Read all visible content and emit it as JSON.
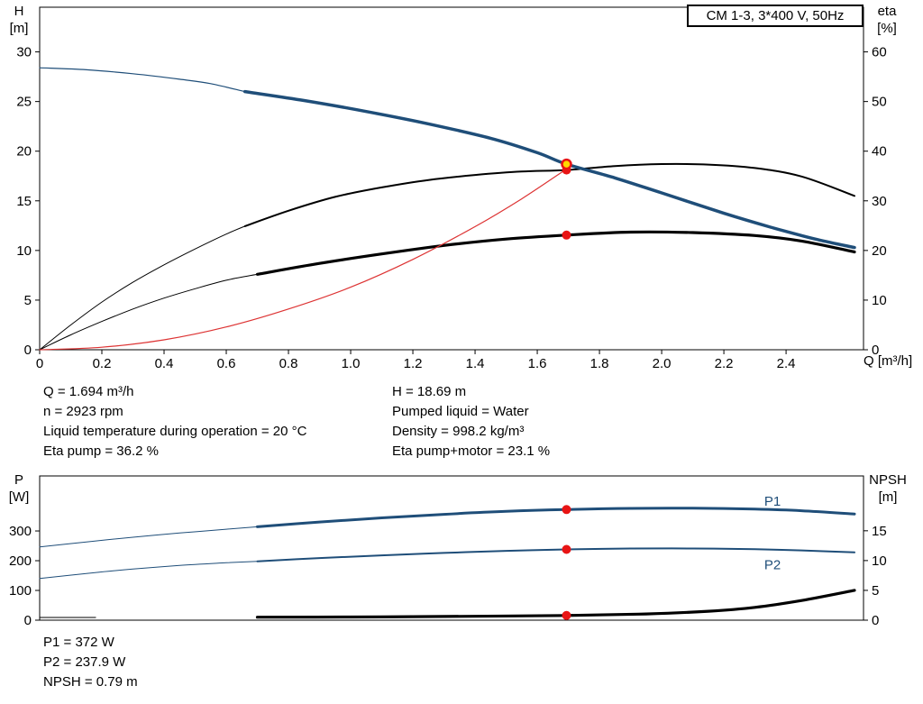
{
  "info": {
    "top_left": [
      "Q = 1.694 m³/h",
      "n = 2923 rpm",
      "Liquid temperature during operation = 20 °C",
      "Eta pump = 36.2 %"
    ],
    "top_right": [
      "H = 18.69 m",
      "Pumped liquid = Water",
      "Density = 998.2 kg/m³",
      "Eta pump+motor = 23.1 %"
    ],
    "bottom": [
      "P1 = 372 W",
      "P2 = 237.9 W",
      "NPSH = 0.79 m"
    ]
  },
  "colors": {
    "curve_blue": "#1f4e79",
    "curve_black": "#000000",
    "curve_red": "#dd3333",
    "marker_red": "#e81414",
    "marker_yellow": "#ffd800"
  },
  "chart_data": [
    {
      "name": "qh-eta-chart",
      "type": "line",
      "title": "CM 1-3, 3*400 V, 50Hz",
      "x_axis": {
        "label": "Q [m³/h]",
        "min": 0,
        "max": 2.649,
        "ticks": [
          [
            0,
            "0"
          ],
          [
            0.2,
            "0.2"
          ],
          [
            0.4,
            "0.4"
          ],
          [
            0.6,
            "0.6"
          ],
          [
            0.8,
            "0.8"
          ],
          [
            1,
            "1.0"
          ],
          [
            1.2,
            "1.2"
          ],
          [
            1.4,
            "1.4"
          ],
          [
            1.6,
            "1.6"
          ],
          [
            1.8,
            "1.8"
          ],
          [
            2,
            "2.0"
          ],
          [
            2.2,
            "2.2"
          ],
          [
            2.4,
            "2.4"
          ]
        ]
      },
      "left_axis": {
        "label": "H",
        "unit": "[m]",
        "min": 0,
        "max": 34.5,
        "ticks": [
          [
            0,
            "0"
          ],
          [
            5,
            "5"
          ],
          [
            10,
            "10"
          ],
          [
            15,
            "15"
          ],
          [
            20,
            "20"
          ],
          [
            25,
            "25"
          ],
          [
            30,
            "30"
          ]
        ]
      },
      "right_axis": {
        "label": "eta",
        "unit": "[%]",
        "min": 0,
        "max": 69,
        "ticks": [
          [
            0,
            "0"
          ],
          [
            10,
            "10"
          ],
          [
            20,
            "20"
          ],
          [
            30,
            "30"
          ],
          [
            40,
            "40"
          ],
          [
            50,
            "50"
          ],
          [
            60,
            "60"
          ]
        ]
      },
      "operating_point": {
        "Q": 1.694,
        "H": 18.69,
        "eta_pump": 36.2,
        "eta_pump_motor": 23.1
      },
      "series": [
        {
          "name": "eta-pump-curve-thin",
          "axis": "right",
          "color": "#000000",
          "width": 1,
          "points": [
            [
              0,
              0
            ],
            [
              0.1,
              5
            ],
            [
              0.2,
              9.6
            ],
            [
              0.3,
              13.6
            ],
            [
              0.4,
              17.1
            ],
            [
              0.5,
              20.3
            ],
            [
              0.6,
              23.3
            ],
            [
              0.66,
              24.9
            ]
          ]
        },
        {
          "name": "eta-pump-curve",
          "axis": "right",
          "color": "#000000",
          "width": 2,
          "points": [
            [
              0.66,
              24.9
            ],
            [
              0.8,
              28.0
            ],
            [
              0.95,
              30.8
            ],
            [
              1.1,
              32.7
            ],
            [
              1.25,
              34.2
            ],
            [
              1.4,
              35.2
            ],
            [
              1.55,
              35.9
            ],
            [
              1.694,
              36.2
            ],
            [
              1.85,
              37.0
            ],
            [
              2.0,
              37.4
            ],
            [
              2.15,
              37.3
            ],
            [
              2.3,
              36.6
            ],
            [
              2.45,
              34.9
            ],
            [
              2.62,
              31.0
            ]
          ]
        },
        {
          "name": "eta-total-curve-thin",
          "axis": "right",
          "color": "#000000",
          "width": 1,
          "points": [
            [
              0,
              0
            ],
            [
              0.1,
              3.0
            ],
            [
              0.2,
              5.7
            ],
            [
              0.3,
              8.2
            ],
            [
              0.4,
              10.4
            ],
            [
              0.5,
              12.3
            ],
            [
              0.6,
              14.0
            ],
            [
              0.7,
              15.2
            ]
          ]
        },
        {
          "name": "eta-total-curve",
          "axis": "right",
          "color": "#000000",
          "width": 3.2,
          "points": [
            [
              0.7,
              15.2
            ],
            [
              0.9,
              17.4
            ],
            [
              1.1,
              19.3
            ],
            [
              1.3,
              21.0
            ],
            [
              1.5,
              22.3
            ],
            [
              1.694,
              23.1
            ],
            [
              1.9,
              23.7
            ],
            [
              2.1,
              23.6
            ],
            [
              2.3,
              23.0
            ],
            [
              2.45,
              21.9
            ],
            [
              2.62,
              19.7
            ]
          ]
        },
        {
          "name": "system-curve",
          "axis": "left",
          "color": "#dd3333",
          "width": 1.2,
          "points": [
            [
              0,
              0
            ],
            [
              0.2,
              0.25
            ],
            [
              0.4,
              1.0
            ],
            [
              0.6,
              2.3
            ],
            [
              0.8,
              4.1
            ],
            [
              1.0,
              6.3
            ],
            [
              1.2,
              9.1
            ],
            [
              1.4,
              12.4
            ],
            [
              1.55,
              15.2
            ],
            [
              1.694,
              18.2
            ]
          ]
        },
        {
          "name": "qh-curve-thin",
          "axis": "left",
          "color": "#1f4e79",
          "width": 1.2,
          "points": [
            [
              0,
              28.4
            ],
            [
              0.15,
              28.2
            ],
            [
              0.3,
              27.8
            ],
            [
              0.45,
              27.25
            ],
            [
              0.55,
              26.8
            ],
            [
              0.66,
              26.0
            ]
          ]
        },
        {
          "name": "qh-curve",
          "axis": "left",
          "color": "#1f4e79",
          "width": 3.5,
          "points": [
            [
              0.66,
              26.0
            ],
            [
              0.85,
              25.1
            ],
            [
              1.05,
              24.0
            ],
            [
              1.25,
              22.75
            ],
            [
              1.45,
              21.3
            ],
            [
              1.6,
              19.85
            ],
            [
              1.694,
              18.69
            ],
            [
              1.85,
              17.3
            ],
            [
              2.0,
              15.8
            ],
            [
              2.2,
              13.75
            ],
            [
              2.35,
              12.35
            ],
            [
              2.5,
              11.1
            ],
            [
              2.62,
              10.3
            ]
          ]
        }
      ],
      "annotations": [],
      "markers": [
        {
          "name": "eta-pump-marker",
          "axis": "right",
          "x": 1.694,
          "y": 36.2,
          "r": 5,
          "fill": "#e81414"
        },
        {
          "name": "eta-total-marker",
          "axis": "right",
          "x": 1.694,
          "y": 23.1,
          "r": 5,
          "fill": "#e81414"
        },
        {
          "name": "duty-point-marker",
          "axis": "left",
          "x": 1.694,
          "y": 18.69,
          "r": 5,
          "fill": "#ffd800",
          "stroke": "#e81414",
          "sw": 2.5
        }
      ]
    },
    {
      "name": "power-npsh-chart",
      "type": "line",
      "x_axis": {
        "label": "",
        "min": 0,
        "max": 2.649,
        "ticks": []
      },
      "left_axis": {
        "label": "P",
        "unit": "[W]",
        "min": 0,
        "max": 485,
        "ticks": [
          [
            0,
            "0"
          ],
          [
            100,
            "100"
          ],
          [
            200,
            "200"
          ],
          [
            300,
            "300"
          ]
        ]
      },
      "right_axis": {
        "label": "NPSH",
        "unit": "[m]",
        "min": 0,
        "max": 24.2,
        "ticks": [
          [
            0,
            "0"
          ],
          [
            5,
            "5"
          ],
          [
            10,
            "10"
          ],
          [
            15,
            "15"
          ]
        ]
      },
      "operating_point": {
        "Q": 1.694,
        "P1": 372,
        "P2": 237.9,
        "NPSH": 0.79
      },
      "series": [
        {
          "name": "p1-curve-thin",
          "axis": "left",
          "color": "#1f4e79",
          "width": 1,
          "points": [
            [
              0,
              246
            ],
            [
              0.15,
              263
            ],
            [
              0.3,
              279
            ],
            [
              0.45,
              293
            ],
            [
              0.6,
              306
            ],
            [
              0.7,
              314
            ]
          ]
        },
        {
          "name": "p1-curve",
          "axis": "left",
          "color": "#1f4e79",
          "width": 3,
          "points": [
            [
              0.7,
              314
            ],
            [
              0.9,
              330
            ],
            [
              1.1,
              344
            ],
            [
              1.3,
              356
            ],
            [
              1.5,
              366
            ],
            [
              1.694,
              372
            ],
            [
              1.9,
              376
            ],
            [
              2.1,
              376.5
            ],
            [
              2.3,
              373.5
            ],
            [
              2.45,
              368
            ],
            [
              2.62,
              357
            ]
          ]
        },
        {
          "name": "p2-curve-thin",
          "axis": "left",
          "color": "#1f4e79",
          "width": 1,
          "points": [
            [
              0,
              140
            ],
            [
              0.15,
              157
            ],
            [
              0.3,
              172
            ],
            [
              0.45,
              184
            ],
            [
              0.6,
              193
            ],
            [
              0.7,
              198
            ]
          ]
        },
        {
          "name": "p2-curve",
          "axis": "left",
          "color": "#1f4e79",
          "width": 2,
          "points": [
            [
              0.7,
              198
            ],
            [
              0.9,
              209
            ],
            [
              1.1,
              218
            ],
            [
              1.3,
              226
            ],
            [
              1.5,
              233
            ],
            [
              1.694,
              237.9
            ],
            [
              1.9,
              241
            ],
            [
              2.1,
              241
            ],
            [
              2.3,
              238.5
            ],
            [
              2.45,
              234.5
            ],
            [
              2.62,
              228
            ]
          ]
        },
        {
          "name": "npsh-curve-thin",
          "axis": "right",
          "color": "#000000",
          "width": 1,
          "points": [
            [
              0,
              0.45
            ],
            [
              0.18,
              0.45
            ]
          ]
        },
        {
          "name": "npsh-curve",
          "axis": "right",
          "color": "#000000",
          "width": 3.2,
          "points": [
            [
              0.7,
              0.5
            ],
            [
              1.0,
              0.53
            ],
            [
              1.3,
              0.62
            ],
            [
              1.694,
              0.79
            ],
            [
              1.95,
              1.05
            ],
            [
              2.15,
              1.5
            ],
            [
              2.3,
              2.15
            ],
            [
              2.45,
              3.3
            ],
            [
              2.62,
              5.0
            ]
          ]
        }
      ],
      "annotations": [
        {
          "name": "p1-label",
          "text": "P1",
          "x": 2.33,
          "y": 385,
          "axis": "left",
          "color": "#1f4e79"
        },
        {
          "name": "p2-label",
          "text": "P2",
          "x": 2.33,
          "y": 172,
          "axis": "left",
          "color": "#1f4e79"
        }
      ],
      "markers": [
        {
          "name": "p1-marker",
          "axis": "left",
          "x": 1.694,
          "y": 372,
          "r": 5,
          "fill": "#e81414"
        },
        {
          "name": "p2-marker",
          "axis": "left",
          "x": 1.694,
          "y": 237.9,
          "r": 5,
          "fill": "#e81414"
        },
        {
          "name": "npsh-marker",
          "axis": "right",
          "x": 1.694,
          "y": 0.79,
          "r": 5,
          "fill": "#e81414"
        }
      ]
    }
  ]
}
